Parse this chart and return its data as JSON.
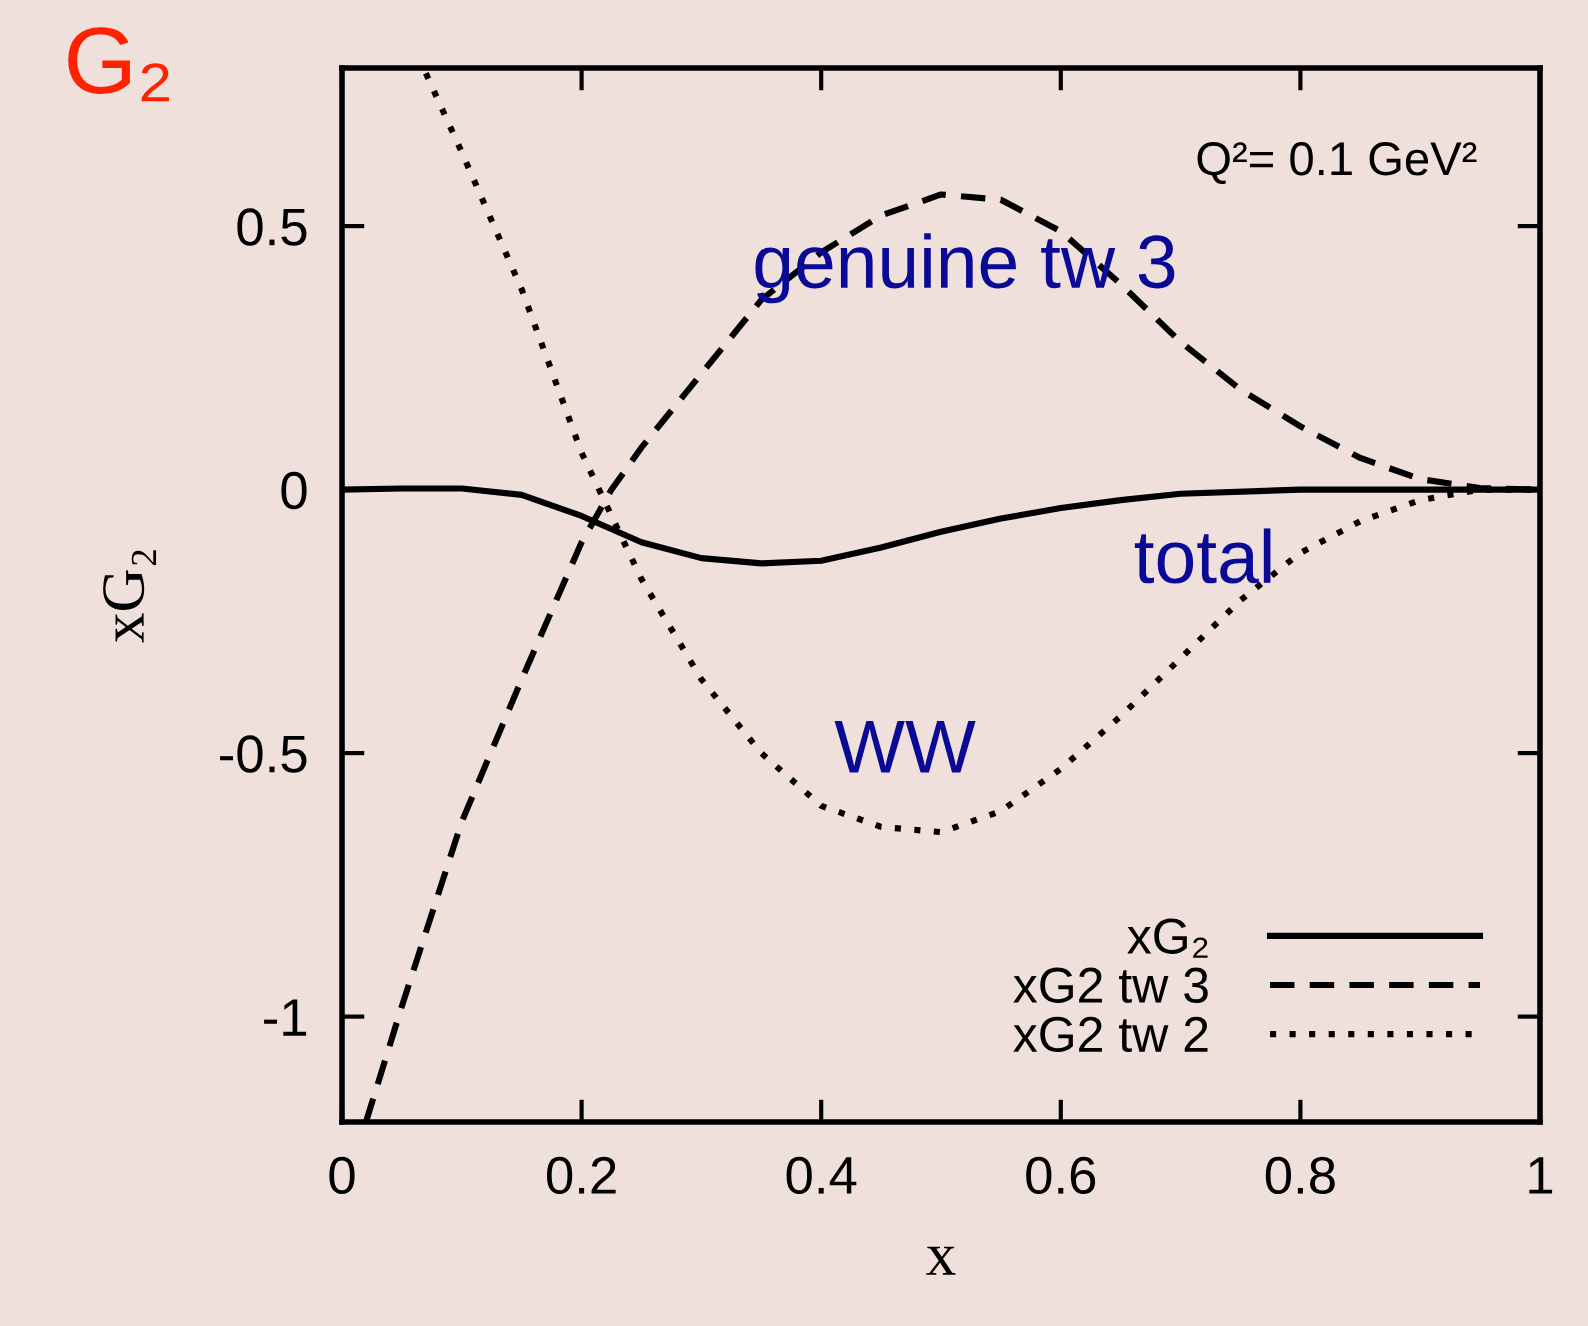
{
  "chart_data": {
    "type": "line",
    "title": "G₂",
    "xlabel": "x",
    "ylabel": "xG₂",
    "xlim": [
      0,
      1
    ],
    "ylim": [
      -1.2,
      0.8
    ],
    "xticks": [
      0,
      0.2,
      0.4,
      0.6,
      0.8,
      1
    ],
    "yticks": [
      -1,
      -0.5,
      0,
      0.5
    ],
    "grid": false,
    "legend": "bottom right",
    "marker": "none",
    "annotations": [
      "Q²= 0.1 GeV²",
      "genuine tw 3",
      "total",
      "WW"
    ],
    "series": [
      {
        "name": "xG₂",
        "color": "#000000",
        "line_style": "solid",
        "x": [
          0,
          0.05,
          0.1,
          0.15,
          0.2,
          0.25,
          0.3,
          0.35,
          0.4,
          0.45,
          0.5,
          0.55,
          0.6,
          0.65,
          0.7,
          0.8,
          1.0
        ],
        "values": [
          0,
          0.002,
          0.002,
          -0.01,
          -0.05,
          -0.1,
          -0.13,
          -0.14,
          -0.135,
          -0.11,
          -0.08,
          -0.055,
          -0.035,
          -0.02,
          -0.008,
          0,
          0
        ]
      },
      {
        "name": "xG2 tw 3",
        "color": "#000000",
        "line_style": "dashed",
        "x": [
          0.02,
          0.05,
          0.1,
          0.15,
          0.2,
          0.225,
          0.25,
          0.3,
          0.35,
          0.4,
          0.45,
          0.5,
          0.55,
          0.6,
          0.65,
          0.7,
          0.75,
          0.8,
          0.85,
          0.9,
          0.95,
          1.0
        ],
        "values": [
          -1.2,
          -0.98,
          -0.63,
          -0.36,
          -0.1,
          0,
          0.08,
          0.22,
          0.36,
          0.45,
          0.52,
          0.56,
          0.55,
          0.49,
          0.39,
          0.28,
          0.19,
          0.12,
          0.06,
          0.02,
          0.003,
          0
        ]
      },
      {
        "name": "xG2 tw 2",
        "color": "#000000",
        "line_style": "dotted",
        "x": [
          0.07,
          0.1,
          0.15,
          0.2,
          0.25,
          0.3,
          0.35,
          0.4,
          0.45,
          0.5,
          0.55,
          0.6,
          0.65,
          0.7,
          0.75,
          0.8,
          0.85,
          0.9,
          0.95,
          1.0
        ],
        "values": [
          0.79,
          0.64,
          0.38,
          0.07,
          -0.17,
          -0.36,
          -0.5,
          -0.6,
          -0.64,
          -0.65,
          -0.61,
          -0.53,
          -0.43,
          -0.32,
          -0.21,
          -0.12,
          -0.06,
          -0.02,
          0,
          0
        ]
      }
    ]
  }
}
